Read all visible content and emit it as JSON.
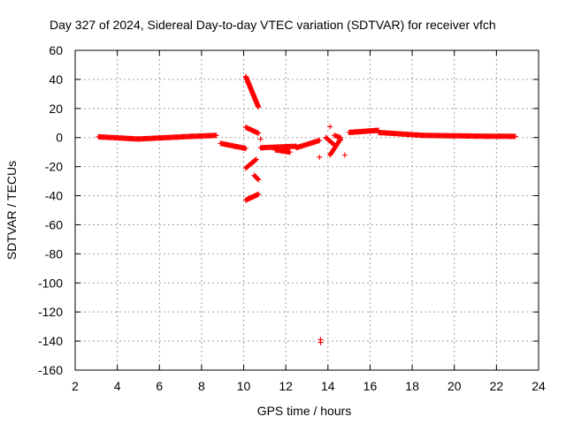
{
  "chart_data": {
    "type": "scatter",
    "title": "Day 327 of 2024, Sidereal Day-to-day VTEC variation (SDTVAR) for receiver vfch",
    "xlabel": "GPS time / hours",
    "ylabel": "SDTVAR / TECUs",
    "xlim": [
      2,
      24
    ],
    "ylim": [
      -160,
      60
    ],
    "xticks": [
      2,
      4,
      6,
      8,
      10,
      12,
      14,
      16,
      18,
      20,
      22,
      24
    ],
    "yticks": [
      60,
      40,
      20,
      0,
      -20,
      -40,
      -60,
      -80,
      -100,
      -120,
      -140,
      -160
    ],
    "grid": true,
    "marker": "+",
    "series_color": "#ff0000",
    "series": [
      {
        "name": "SDTVAR",
        "segments": [
          {
            "x0": 3.1,
            "x1": 5.0,
            "y0": 0.5,
            "y1": -1.0,
            "step": 0.04
          },
          {
            "x0": 5.0,
            "x1": 7.5,
            "y0": -1.0,
            "y1": 0.8,
            "step": 0.04
          },
          {
            "x0": 7.5,
            "x1": 8.7,
            "y0": 0.8,
            "y1": 1.5,
            "step": 0.04
          },
          {
            "x0": 8.9,
            "x1": 10.1,
            "y0": -4.0,
            "y1": -7.5,
            "step": 0.04
          },
          {
            "x0": 10.1,
            "x1": 10.7,
            "y0": 42.0,
            "y1": 21.0,
            "step": 0.015
          },
          {
            "x0": 10.1,
            "x1": 10.7,
            "y0": 7.0,
            "y1": 3.0,
            "step": 0.04
          },
          {
            "x0": 10.1,
            "x1": 10.6,
            "y0": -21.0,
            "y1": -15.0,
            "step": 0.03
          },
          {
            "x0": 10.1,
            "x1": 10.7,
            "y0": -43.0,
            "y1": -39.0,
            "step": 0.03
          },
          {
            "x0": 10.5,
            "x1": 10.7,
            "y0": -26.0,
            "y1": -29.0,
            "step": 0.03
          },
          {
            "x0": 10.8,
            "x1": 12.5,
            "y0": -7.0,
            "y1": -6.0,
            "step": 0.04
          },
          {
            "x0": 11.5,
            "x1": 12.2,
            "y0": -8.5,
            "y1": -10.0,
            "step": 0.04
          },
          {
            "x0": 12.5,
            "x1": 13.6,
            "y0": -7.0,
            "y1": -2.0,
            "step": 0.04
          },
          {
            "x0": 13.9,
            "x1": 14.3,
            "y0": 0.0,
            "y1": -5.0,
            "step": 0.04
          },
          {
            "x0": 14.1,
            "x1": 14.6,
            "y0": -12.0,
            "y1": -1.0,
            "step": 0.03
          },
          {
            "x0": 14.3,
            "x1": 14.6,
            "y0": 1.5,
            "y1": 0.0,
            "step": 0.05
          },
          {
            "x0": 15.0,
            "x1": 16.4,
            "y0": 3.5,
            "y1": 5.0,
            "step": 0.03
          },
          {
            "x0": 16.4,
            "x1": 18.5,
            "y0": 3.5,
            "y1": 1.5,
            "step": 0.04
          },
          {
            "x0": 18.5,
            "x1": 21.0,
            "y0": 1.5,
            "y1": 1.0,
            "step": 0.04
          },
          {
            "x0": 21.0,
            "x1": 22.9,
            "y0": 1.0,
            "y1": 0.8,
            "step": 0.04
          }
        ],
        "points": [
          {
            "x": 10.8,
            "y": -1.0
          },
          {
            "x": 10.4,
            "y": -17.0
          },
          {
            "x": 13.6,
            "y": -13.5
          },
          {
            "x": 14.1,
            "y": 7.5
          },
          {
            "x": 14.8,
            "y": -12.0
          },
          {
            "x": 13.65,
            "y": -139.0
          },
          {
            "x": 13.65,
            "y": -141.0
          }
        ]
      }
    ]
  }
}
